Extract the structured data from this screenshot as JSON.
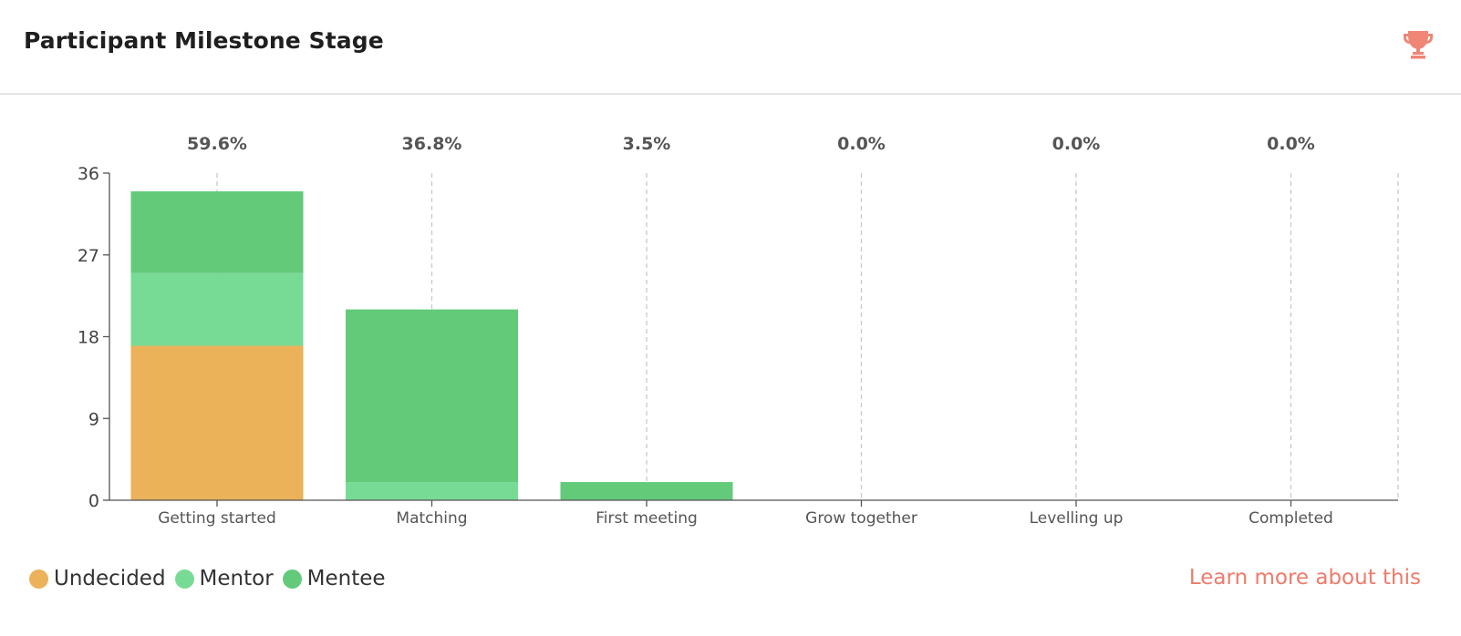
{
  "header": {
    "title": "Participant Milestone Stage",
    "icon": "trophy-icon",
    "icon_color": "#ef8676"
  },
  "chart_data": {
    "type": "bar",
    "stacked": true,
    "categories": [
      "Getting started",
      "Matching",
      "First meeting",
      "Grow together",
      "Levelling up",
      "Completed"
    ],
    "percentages": [
      "59.6%",
      "36.8%",
      "3.5%",
      "0.0%",
      "0.0%",
      "0.0%"
    ],
    "series": [
      {
        "name": "Undecided",
        "color": "#ebb25a",
        "values": [
          17,
          0,
          0,
          0,
          0,
          0
        ]
      },
      {
        "name": "Mentor",
        "color": "#78db95",
        "values": [
          8,
          2,
          0,
          0,
          0,
          0
        ]
      },
      {
        "name": "Mentee",
        "color": "#63ca7a",
        "values": [
          9,
          19,
          2,
          0,
          0,
          0
        ]
      }
    ],
    "yticks": [
      0,
      9,
      18,
      27,
      36
    ],
    "ylim": [
      0,
      36
    ],
    "grid": "vertical-dashed",
    "legend": "bottom-left"
  },
  "footer": {
    "learn_more": "Learn more about this",
    "link_color": "#ee7b6b"
  }
}
